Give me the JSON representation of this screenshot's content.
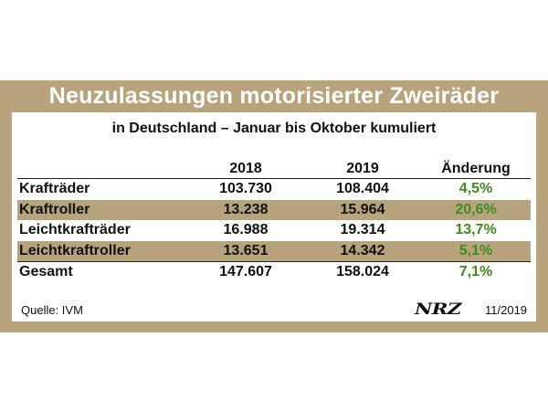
{
  "title": "Neuzulassungen motorisierter Zweiräder",
  "subtitle": "in Deutschland – Januar bis Oktober kumuliert",
  "colors": {
    "frame": "#b7a47d",
    "change_text": "#3f8a1e"
  },
  "table": {
    "headers": [
      "",
      "2018",
      "2019",
      "Änderung"
    ],
    "rows": [
      {
        "label": "Krafträder",
        "y2018": "103.730",
        "y2019": "108.404",
        "change": "4,5%"
      },
      {
        "label": "Kraftroller",
        "y2018": "13.238",
        "y2019": "15.964",
        "change": "20,6%"
      },
      {
        "label": "Leichtkrafträder",
        "y2018": "16.988",
        "y2019": "19.314",
        "change": "13,7%"
      },
      {
        "label": "Leichtkraftroller",
        "y2018": "13.651",
        "y2019": "14.342",
        "change": "5,1%"
      }
    ],
    "total": {
      "label": "Gesamt",
      "y2018": "147.607",
      "y2019": "158.024",
      "change": "7,1%"
    }
  },
  "footer": {
    "source": "Quelle: IVM",
    "logo_text": "NRZ",
    "date": "11/2019"
  }
}
